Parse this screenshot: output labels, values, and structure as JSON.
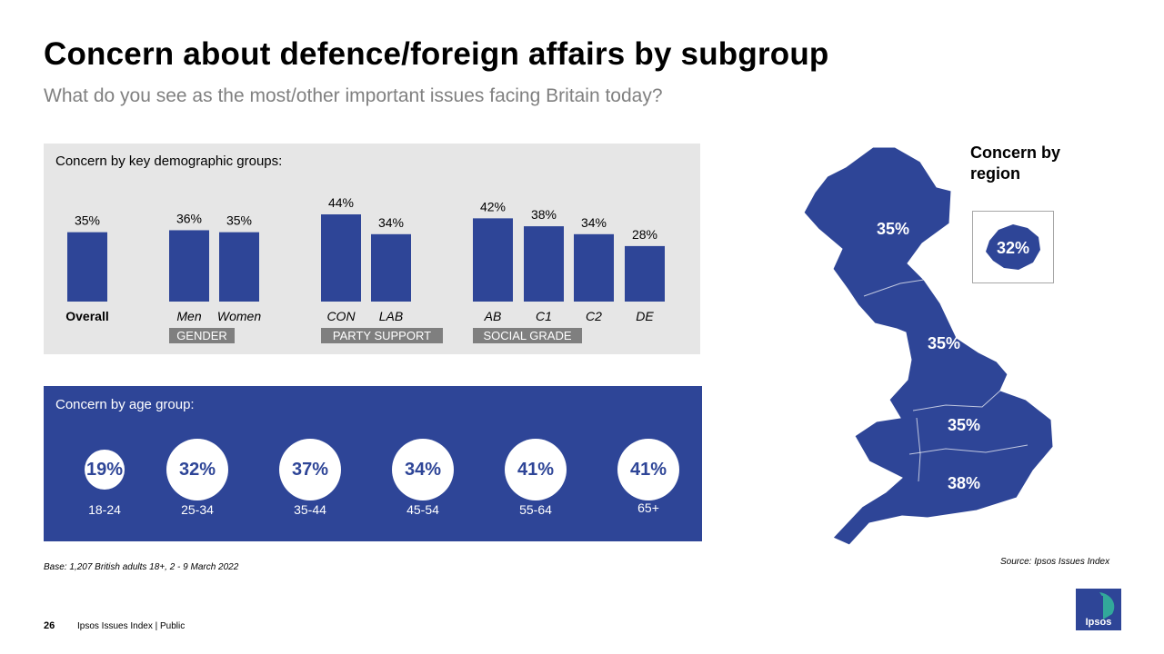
{
  "title": "Concern about defence/foreign affairs by subgroup",
  "subtitle": "What do you see as the most/other important issues facing Britain today?",
  "demographics": {
    "label": "Concern by key demographic  groups:",
    "group_labels": [
      "GENDER",
      "PARTY SUPPORT",
      "SOCIAL GRADE"
    ]
  },
  "age": {
    "label": "Concern by age group:",
    "items": [
      {
        "value": "19%",
        "group": "18-24"
      },
      {
        "value": "32%",
        "group": "25-34"
      },
      {
        "value": "37%",
        "group": "35-44"
      },
      {
        "value": "34%",
        "group": "45-54"
      },
      {
        "value": "41%",
        "group": "55-64"
      },
      {
        "value": "41%",
        "group": "65+"
      }
    ]
  },
  "region": {
    "title": "Concern by region",
    "labels": [
      "35%",
      "35%",
      "35%",
      "38%"
    ],
    "london": "32%"
  },
  "base_note": "Base: 1,207 British adults 18+, 2 - 9 March 2022",
  "source_note": "Source: Ipsos Issues Index",
  "footer": {
    "page_number": "26",
    "text": "Ipsos Issues Index | Public"
  },
  "logo_text": "Ipsos",
  "colors": {
    "bar": "#2e4597",
    "panel_grey": "#e6e6e6",
    "group_label_bg": "#7f7f7f"
  },
  "chart_data": {
    "type": "bar",
    "categories": [
      "Overall",
      "Men",
      "Women",
      "CON",
      "LAB",
      "AB",
      "C1",
      "C2",
      "DE"
    ],
    "values": [
      35,
      36,
      35,
      44,
      34,
      42,
      38,
      34,
      28
    ],
    "value_labels": [
      "35%",
      "36%",
      "35%",
      "44%",
      "34%",
      "42%",
      "38%",
      "34%",
      "28%"
    ],
    "title": "",
    "xlabel": "",
    "ylabel": "",
    "ylim": [
      0,
      50
    ],
    "grid": false
  }
}
